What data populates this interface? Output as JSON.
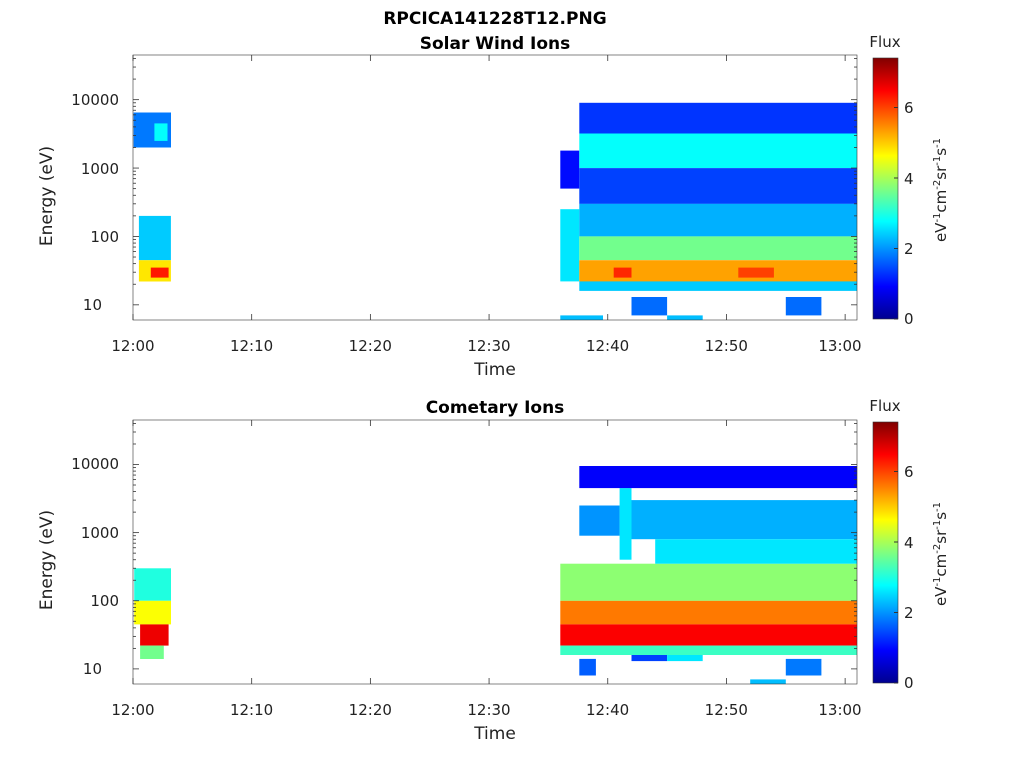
{
  "figure_title": "RPCICA141228T12.PNG",
  "chart_data": [
    {
      "type": "heatmap",
      "title": "Solar Wind Ions",
      "xlabel": "Time",
      "ylabel": "Energy (eV)",
      "x_ticks": [
        "12:00",
        "12:10",
        "12:20",
        "12:30",
        "12:40",
        "12:50",
        "13:00"
      ],
      "x_range_minutes": [
        0,
        61
      ],
      "y_ticks": [
        "10",
        "100",
        "1000",
        "10000"
      ],
      "y_scale": "log",
      "ylim": [
        6,
        45000
      ],
      "colorbar": {
        "label": "Flux",
        "unit": "eV-1cm-2sr-1s-1",
        "range": [
          0,
          7.4
        ],
        "ticks": [
          "0",
          "2",
          "4",
          "6"
        ],
        "colormap": "jet"
      },
      "blocks": [
        {
          "t0": 0.05,
          "t1": 3.2,
          "e0": 2000,
          "e1": 6500,
          "flux": 1.8
        },
        {
          "t0": 1.8,
          "t1": 2.9,
          "e0": 2500,
          "e1": 4500,
          "flux": 2.8
        },
        {
          "t0": 0.5,
          "t1": 3.2,
          "e0": 45,
          "e1": 200,
          "flux": 2.4
        },
        {
          "t0": 0.5,
          "t1": 3.2,
          "e0": 22,
          "e1": 45,
          "flux": 4.8
        },
        {
          "t0": 1.5,
          "t1": 3.0,
          "e0": 25,
          "e1": 35,
          "flux": 6.3
        },
        {
          "t0": 36.0,
          "t1": 37.6,
          "e0": 22,
          "e1": 250,
          "flux": 2.6
        },
        {
          "t0": 36.0,
          "t1": 37.6,
          "e0": 500,
          "e1": 1800,
          "flux": 1.0
        },
        {
          "t0": 37.6,
          "t1": 61.0,
          "e0": 1000,
          "e1": 3200,
          "flux": 2.8
        },
        {
          "t0": 37.6,
          "t1": 61.0,
          "e0": 3200,
          "e1": 9000,
          "flux": 1.3
        },
        {
          "t0": 37.6,
          "t1": 61.0,
          "e0": 300,
          "e1": 1000,
          "flux": 1.4
        },
        {
          "t0": 37.6,
          "t1": 61.0,
          "e0": 100,
          "e1": 300,
          "flux": 2.2
        },
        {
          "t0": 37.6,
          "t1": 61.0,
          "e0": 45,
          "e1": 100,
          "flux": 3.6
        },
        {
          "t0": 37.6,
          "t1": 61.0,
          "e0": 22,
          "e1": 45,
          "flux": 5.3
        },
        {
          "t0": 40.5,
          "t1": 42.0,
          "e0": 25,
          "e1": 35,
          "flux": 6.2
        },
        {
          "t0": 51.0,
          "t1": 54.0,
          "e0": 25,
          "e1": 35,
          "flux": 6.0
        },
        {
          "t0": 37.6,
          "t1": 61.0,
          "e0": 16,
          "e1": 22,
          "flux": 2.4
        },
        {
          "t0": 42.0,
          "t1": 45.0,
          "e0": 7,
          "e1": 13,
          "flux": 1.7
        },
        {
          "t0": 55.0,
          "t1": 58.0,
          "e0": 7,
          "e1": 13,
          "flux": 1.7
        },
        {
          "t0": 36.0,
          "t1": 39.6,
          "e0": 6,
          "e1": 7,
          "flux": 2.3
        },
        {
          "t0": 45.0,
          "t1": 48.0,
          "e0": 6,
          "e1": 7,
          "flux": 2.3
        }
      ]
    },
    {
      "type": "heatmap",
      "title": "Cometary Ions",
      "xlabel": "Time",
      "ylabel": "Energy (eV)",
      "x_ticks": [
        "12:00",
        "12:10",
        "12:20",
        "12:30",
        "12:40",
        "12:50",
        "13:00"
      ],
      "x_range_minutes": [
        0,
        61
      ],
      "y_ticks": [
        "10",
        "100",
        "1000",
        "10000"
      ],
      "y_scale": "log",
      "ylim": [
        6,
        45000
      ],
      "colorbar": {
        "label": "Flux",
        "unit": "eV-1cm-2sr-1s-1",
        "range": [
          0,
          7.4
        ],
        "ticks": [
          "0",
          "2",
          "4",
          "6"
        ],
        "colormap": "jet"
      },
      "blocks": [
        {
          "t0": 0.1,
          "t1": 3.2,
          "e0": 100,
          "e1": 300,
          "flux": 3.0
        },
        {
          "t0": 0.1,
          "t1": 3.2,
          "e0": 45,
          "e1": 100,
          "flux": 4.6
        },
        {
          "t0": 0.6,
          "t1": 3.0,
          "e0": 22,
          "e1": 45,
          "flux": 6.6
        },
        {
          "t0": 0.6,
          "t1": 2.6,
          "e0": 14,
          "e1": 22,
          "flux": 3.6
        },
        {
          "t0": 36.0,
          "t1": 61.0,
          "e0": 100,
          "e1": 350,
          "flux": 3.8
        },
        {
          "t0": 36.0,
          "t1": 61.0,
          "e0": 45,
          "e1": 100,
          "flux": 5.6
        },
        {
          "t0": 36.0,
          "t1": 61.0,
          "e0": 22,
          "e1": 45,
          "flux": 6.5
        },
        {
          "t0": 36.0,
          "t1": 61.0,
          "e0": 16,
          "e1": 22,
          "flux": 3.2
        },
        {
          "t0": 37.6,
          "t1": 39.0,
          "e0": 8,
          "e1": 14,
          "flux": 1.6
        },
        {
          "t0": 42.0,
          "t1": 45.0,
          "e0": 13,
          "e1": 16,
          "flux": 1.4
        },
        {
          "t0": 45.0,
          "t1": 48.0,
          "e0": 13,
          "e1": 16,
          "flux": 2.6
        },
        {
          "t0": 55.0,
          "t1": 58.0,
          "e0": 8,
          "e1": 14,
          "flux": 1.8
        },
        {
          "t0": 52.0,
          "t1": 55.0,
          "e0": 6,
          "e1": 7,
          "flux": 2.3
        },
        {
          "t0": 42.0,
          "t1": 61.0,
          "e0": 800,
          "e1": 3000,
          "flux": 2.2
        },
        {
          "t0": 37.6,
          "t1": 41.0,
          "e0": 900,
          "e1": 2500,
          "flux": 2.0
        },
        {
          "t0": 41.0,
          "t1": 42.0,
          "e0": 400,
          "e1": 4500,
          "flux": 2.6
        },
        {
          "t0": 37.6,
          "t1": 61.0,
          "e0": 4500,
          "e1": 9500,
          "flux": 0.9
        },
        {
          "t0": 44.0,
          "t1": 61.0,
          "e0": 350,
          "e1": 800,
          "flux": 2.6
        }
      ]
    }
  ]
}
